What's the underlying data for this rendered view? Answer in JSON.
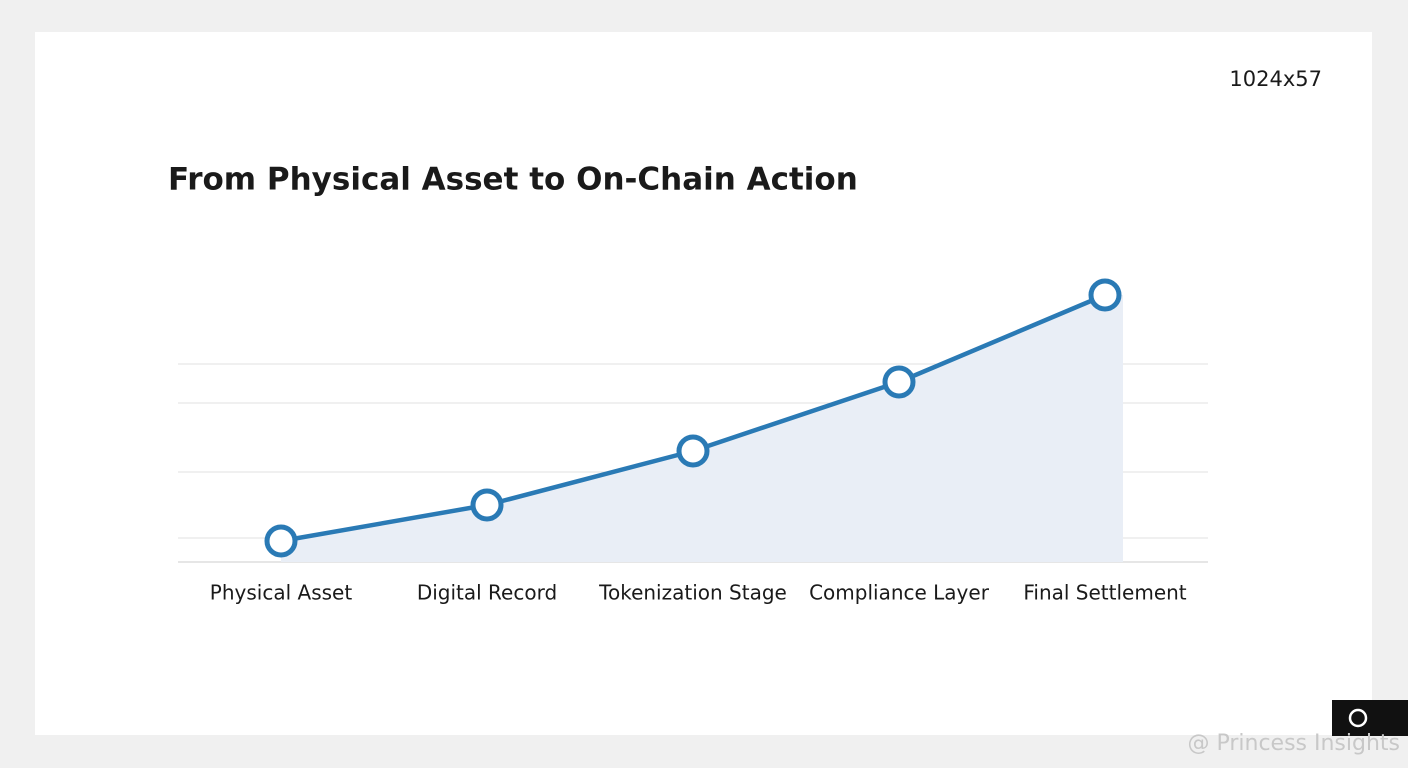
{
  "chart_data": {
    "type": "line",
    "title": "From Physical Asset to On-Chain Action",
    "size_label": "1024x57",
    "watermark": "@ Princess Insights",
    "categories": [
      "Physical Asset",
      "Digital Record",
      "Tokenization Stage",
      "Compliance Layer",
      "Final Settlement"
    ],
    "values": [
      7,
      19,
      37,
      60,
      89
    ],
    "color": "#2a7ab5",
    "area_color": "#e9eef6",
    "ylim": [
      0,
      100
    ],
    "yticks": [
      8,
      30,
      53,
      66
    ],
    "grid": true
  }
}
